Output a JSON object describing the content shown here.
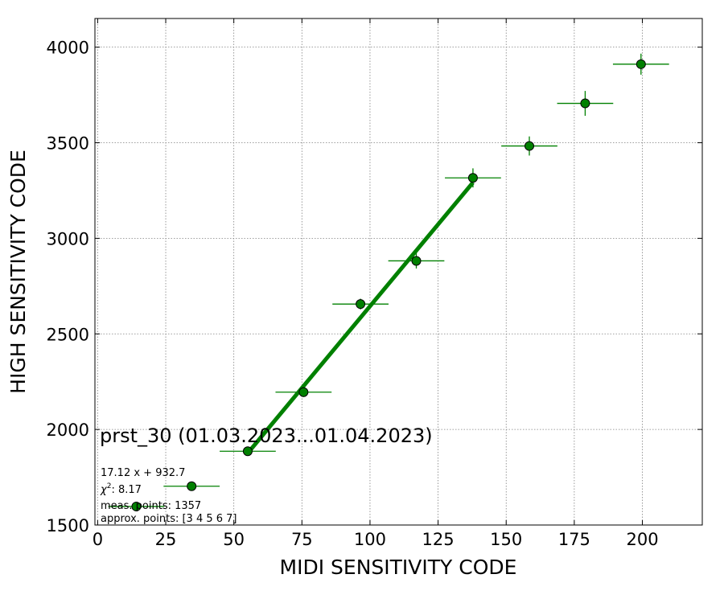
{
  "chart_data": {
    "type": "scatter",
    "title": "prst_30 (01.03.2023...01.04.2023)",
    "xlabel": "MIDI SENSITIVITY CODE",
    "ylabel": "HIGH SENSITIVITY CODE",
    "xlim": [
      -1,
      222
    ],
    "ylim": [
      1500,
      4150
    ],
    "xticks": [
      0,
      25,
      50,
      75,
      100,
      125,
      150,
      175,
      200
    ],
    "yticks": [
      1500,
      2000,
      2500,
      3000,
      3500,
      4000
    ],
    "grid": true,
    "colors": {
      "marker": "#008000",
      "fit": "#008000",
      "edge": "#000000",
      "grid": "#808080"
    },
    "series": [
      {
        "x": [
          14.2,
          34.5,
          55.1,
          75.6,
          96.5,
          117.0,
          137.8,
          158.5,
          179.0,
          199.5
        ],
        "y": [
          1597,
          1703,
          1886,
          2195,
          2656,
          2882,
          3316,
          3483,
          3706,
          3911
        ],
        "xerr": [
          10.3,
          10.3,
          10.3,
          10.3,
          10.3,
          10.3,
          10.3,
          10.3,
          10.3,
          10.3
        ],
        "yerr": [
          12,
          15,
          20,
          25,
          28,
          40,
          50,
          50,
          65,
          55
        ]
      }
    ],
    "fit_line": {
      "x": [
        55.1,
        137.8
      ],
      "y": [
        1876,
        3292
      ]
    },
    "annotations": {
      "equation": "17.12 x + 932.7",
      "chi2_prefix": "χ",
      "chi2_exponent": "2",
      "chi2_value": ": 8.17",
      "measured": "meas. points: 1357",
      "approx": "approx. points: [3 4 5 6 7]"
    }
  }
}
